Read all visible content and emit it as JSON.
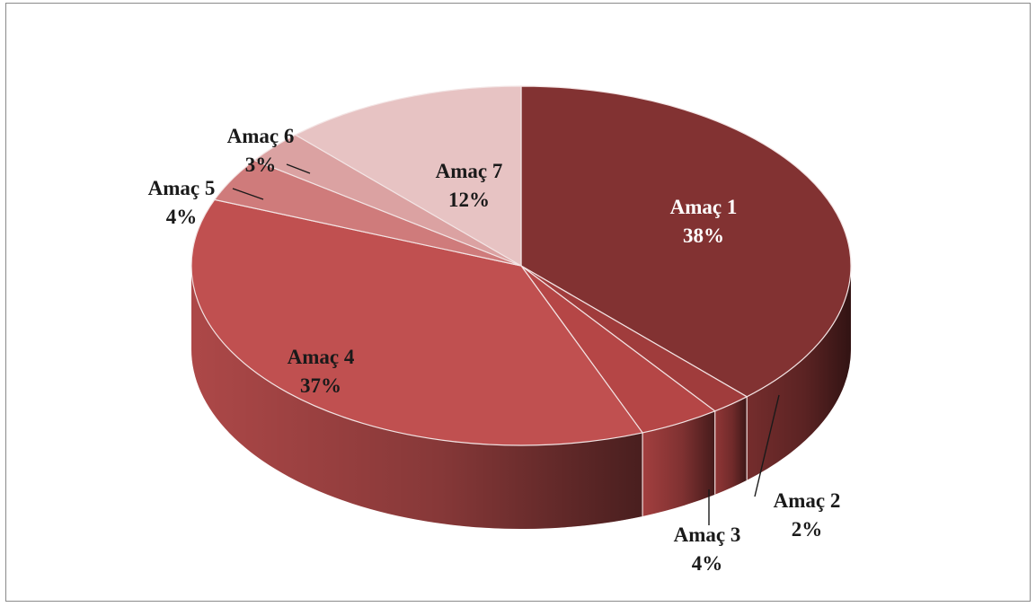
{
  "chart_data": {
    "type": "pie",
    "style": "3d",
    "title": "",
    "slices": [
      {
        "label": "Amaç 1",
        "percent_text": "38%",
        "value": 38,
        "color": "#823232"
      },
      {
        "label": "Amaç 2",
        "percent_text": "2%",
        "value": 2,
        "color": "#a03c3c"
      },
      {
        "label": "Amaç 3",
        "percent_text": "4%",
        "value": 4,
        "color": "#b54646"
      },
      {
        "label": "Amaç 4",
        "percent_text": "37%",
        "value": 37,
        "color": "#c05050"
      },
      {
        "label": "Amaç 5",
        "percent_text": "4%",
        "value": 4,
        "color": "#cf7b7b"
      },
      {
        "label": "Amaç 6",
        "percent_text": "3%",
        "value": 3,
        "color": "#dba2a2"
      },
      {
        "label": "Amaç 7",
        "percent_text": "12%",
        "value": 12,
        "color": "#e7c3c3"
      }
    ]
  }
}
